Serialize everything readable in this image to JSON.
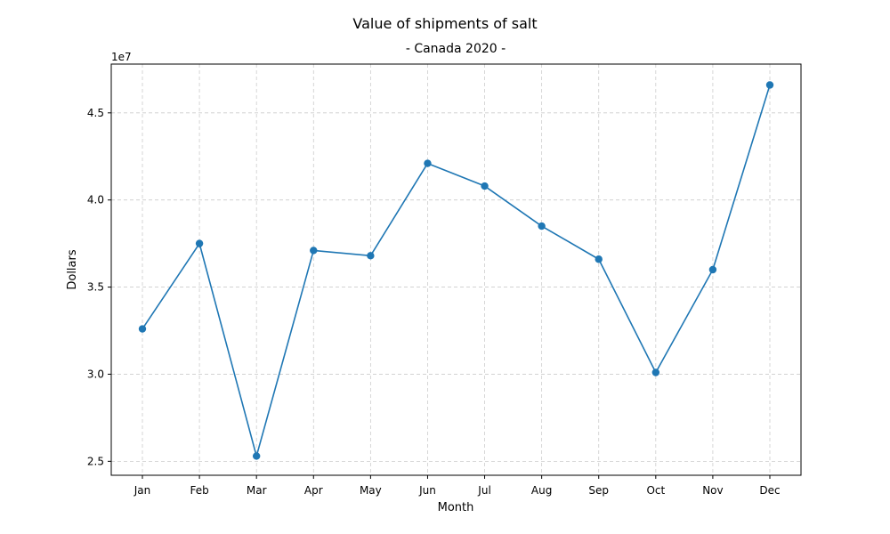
{
  "chart_data": {
    "type": "line",
    "title": "Value of shipments of salt",
    "subtitle": "- Canada 2020 -",
    "xlabel": "Month",
    "ylabel": "Dollars",
    "y_offset_label": "1e7",
    "categories": [
      "Jan",
      "Feb",
      "Mar",
      "Apr",
      "May",
      "Jun",
      "Jul",
      "Aug",
      "Sep",
      "Oct",
      "Nov",
      "Dec"
    ],
    "series": [
      {
        "values": [
          32600000,
          37500000,
          25300000,
          37100000,
          36800000,
          42100000,
          40800000,
          38500000,
          36600000,
          30100000,
          36000000,
          46600000
        ]
      }
    ],
    "yticks": [
      25000000,
      30000000,
      35000000,
      40000000,
      45000000
    ],
    "ytick_labels": [
      "2.5",
      "3.0",
      "3.5",
      "4.0",
      "4.5"
    ],
    "ylim": [
      24200000,
      47800000
    ],
    "grid": true,
    "marker": "circle",
    "colors": {
      "line": "#1f77b4",
      "grid": "#cccccc",
      "axes": "#000000"
    }
  }
}
